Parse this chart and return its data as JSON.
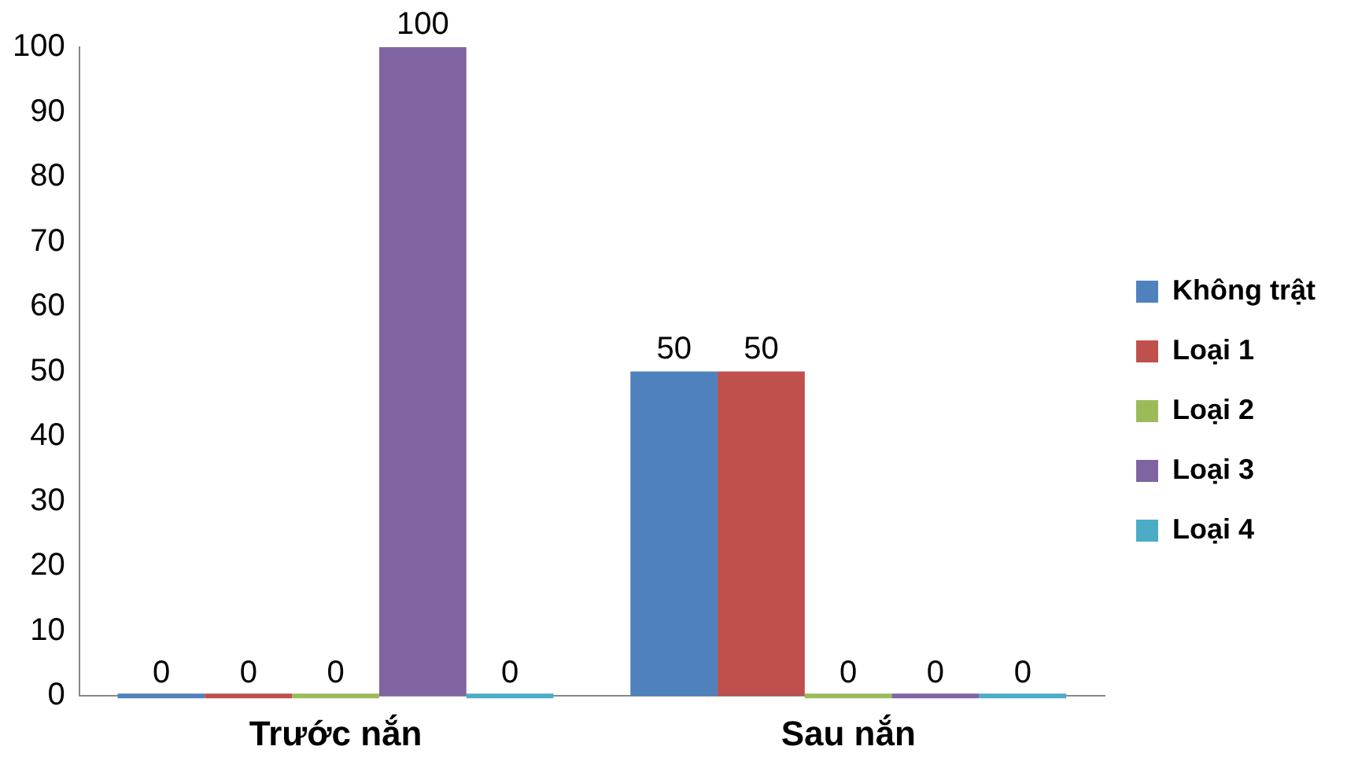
{
  "chart_data": {
    "type": "bar",
    "categories": [
      "Trước nắn",
      "Sau nắn"
    ],
    "series": [
      {
        "name": "Không trật",
        "color": "#4f81bd",
        "values": [
          0,
          50
        ]
      },
      {
        "name": "Loại 1",
        "color": "#c0504d",
        "values": [
          0,
          50
        ]
      },
      {
        "name": "Loại 2",
        "color": "#9bbb59",
        "values": [
          0,
          0
        ]
      },
      {
        "name": "Loại 3",
        "color": "#8064a2",
        "values": [
          100,
          0
        ]
      },
      {
        "name": "Loại 4",
        "color": "#4bacc6",
        "values": [
          0,
          0
        ]
      }
    ],
    "ylim": [
      0,
      100
    ],
    "yticks": [
      0,
      10,
      20,
      30,
      40,
      50,
      60,
      70,
      80,
      90,
      100
    ],
    "grid": false,
    "legend": "right",
    "data_labels": true
  }
}
